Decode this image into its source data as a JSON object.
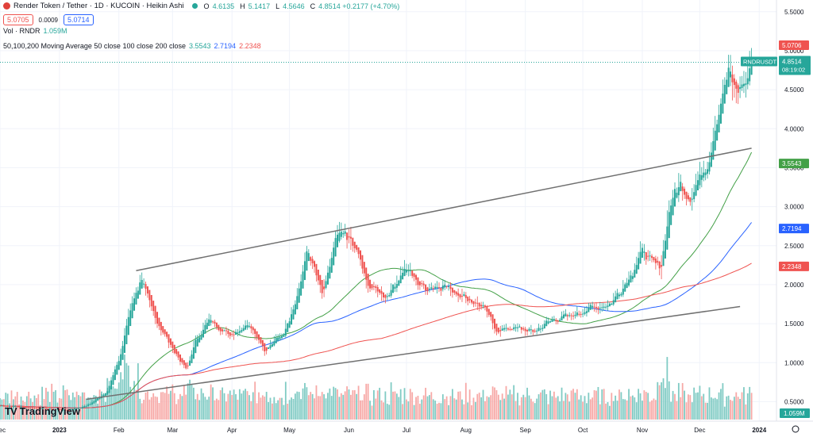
{
  "header": {
    "title": "Render Token / Tether · 1D · KUCOIN · Heikin Ashi",
    "ohlc": [
      {
        "k": "O",
        "v": "4.6135"
      },
      {
        "k": "H",
        "v": "5.1417"
      },
      {
        "k": "L",
        "v": "4.5646"
      },
      {
        "k": "C",
        "v": "4.8514 +0.2177 (+4.70%)"
      }
    ],
    "sell_price": "5.0705",
    "spread": "0.0009",
    "buy_price": "5.0714",
    "volume_label": "Vol · RNDR",
    "volume_value": "1.059M",
    "ma_label": "50,100,200 Moving Average 50 close 100 close 200 close",
    "ma_values": [
      "3.5543",
      "2.7194",
      "2.2348"
    ]
  },
  "logo": "TradingView",
  "colors": {
    "up": "#26a69a",
    "down": "#ef5350",
    "ma50": "#43a047",
    "ma100": "#2962ff",
    "ma200": "#ef5350",
    "trendline": "#707070",
    "grid": "#f0f3fa"
  },
  "chart_data": {
    "type": "candlestick",
    "style": "Heikin Ashi",
    "symbol": "RNDRUSDT",
    "interval": "1D",
    "y_axis": {
      "ticks": [
        "5.5000",
        "5.0000",
        "4.5000",
        "4.0000",
        "3.5000",
        "3.0000",
        "2.5000",
        "2.0000",
        "1.5000",
        "1.0000",
        "0.5000"
      ],
      "range": [
        0.25,
        5.65
      ],
      "position": "right"
    },
    "x_axis": {
      "ticks": [
        "Dec",
        "2023",
        "Feb",
        "Mar",
        "Apr",
        "May",
        "Jun",
        "Jul",
        "Aug",
        "Sep",
        "Oct",
        "Nov",
        "Dec",
        "2024"
      ],
      "range": [
        "2022-12-01",
        "2024-01-10"
      ]
    },
    "price_series": {
      "name": "RNDRUSDT",
      "dates": [
        "2022-12-01",
        "2022-12-20",
        "2023-01-05",
        "2023-01-15",
        "2023-01-25",
        "2023-02-01",
        "2023-02-07",
        "2023-02-12",
        "2023-02-20",
        "2023-02-28",
        "2023-03-08",
        "2023-03-12",
        "2023-03-20",
        "2023-03-30",
        "2023-04-10",
        "2023-04-18",
        "2023-04-28",
        "2023-05-05",
        "2023-05-10",
        "2023-05-18",
        "2023-05-25",
        "2023-05-30",
        "2023-06-05",
        "2023-06-10",
        "2023-06-20",
        "2023-06-30",
        "2023-07-10",
        "2023-07-20",
        "2023-07-30",
        "2023-08-10",
        "2023-08-17",
        "2023-08-25",
        "2023-09-05",
        "2023-09-15",
        "2023-09-25",
        "2023-10-05",
        "2023-10-15",
        "2023-10-25",
        "2023-11-01",
        "2023-11-05",
        "2023-11-10",
        "2023-11-15",
        "2023-11-20",
        "2023-11-25",
        "2023-12-01",
        "2023-12-05",
        "2023-12-10",
        "2023-12-15",
        "2023-12-20",
        "2023-12-25",
        "2023-12-28"
      ],
      "close": [
        0.45,
        0.42,
        0.39,
        0.45,
        0.62,
        1.05,
        1.75,
        2.05,
        1.55,
        1.2,
        0.9,
        1.25,
        1.55,
        1.35,
        1.5,
        1.15,
        1.4,
        1.9,
        2.45,
        1.85,
        2.6,
        2.65,
        2.4,
        2.0,
        1.85,
        2.2,
        1.95,
        2.0,
        1.85,
        1.7,
        1.4,
        1.45,
        1.4,
        1.55,
        1.6,
        1.7,
        1.75,
        2.1,
        2.45,
        2.3,
        2.2,
        3.0,
        3.3,
        3.1,
        3.4,
        3.6,
        4.2,
        4.7,
        4.5,
        4.6,
        4.85
      ]
    },
    "last_price": {
      "label": "RNDRUSDT",
      "value": "4.8514",
      "countdown": "08:19:02"
    },
    "price_tags": [
      {
        "value": "5.0706",
        "color": "#ef5350"
      },
      {
        "value": "3.5543",
        "color": "#43a047"
      },
      {
        "value": "2.7194",
        "color": "#2962ff"
      },
      {
        "value": "2.2348",
        "color": "#ef5350"
      }
    ],
    "moving_averages": [
      {
        "period": 50,
        "last": 3.5543
      },
      {
        "period": 100,
        "last": 2.7194
      },
      {
        "period": 200,
        "last": 2.2348
      }
    ],
    "trendlines": [
      {
        "from": [
          "2023-02-10",
          2.18
        ],
        "to": [
          "2023-12-28",
          3.75
        ]
      },
      {
        "from": [
          "2023-01-15",
          0.53
        ],
        "to": [
          "2023-12-22",
          1.72
        ]
      }
    ],
    "volume_tag": "1.059M"
  }
}
